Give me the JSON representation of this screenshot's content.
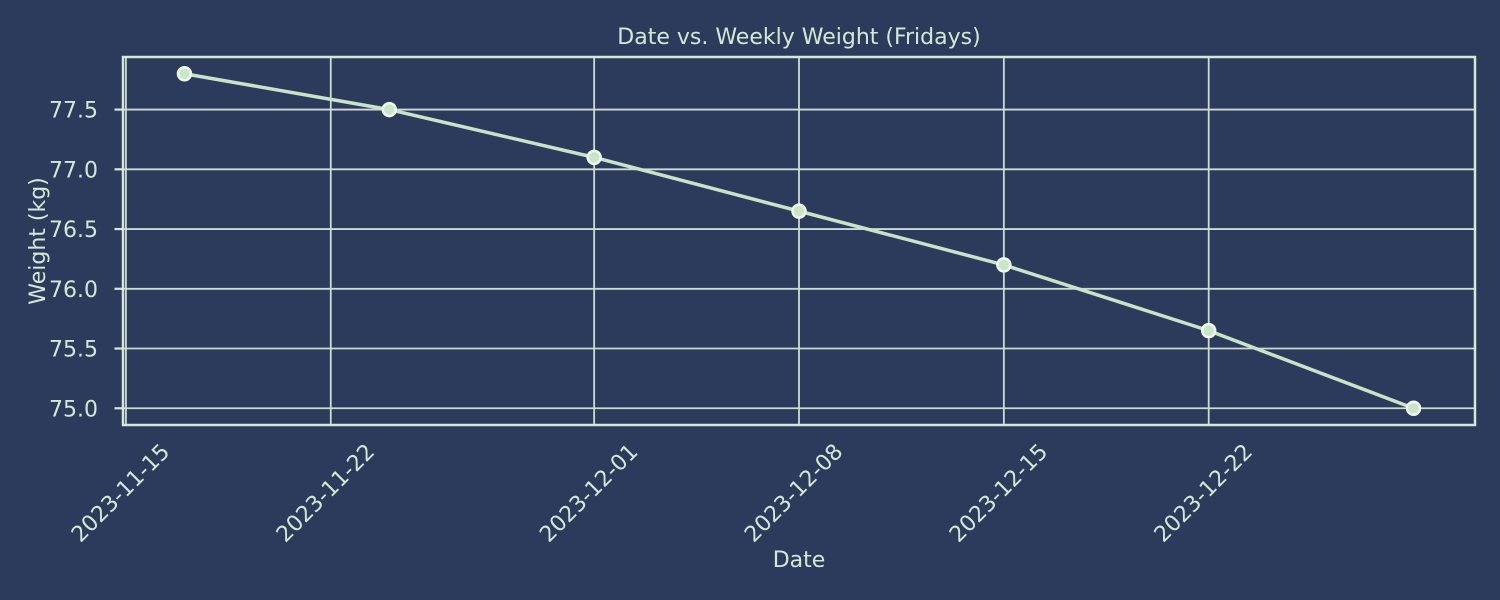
{
  "chart_data": {
    "type": "line",
    "title": "Date vs. Weekly Weight (Fridays)",
    "xlabel": "Date",
    "ylabel": "Weight (kg)",
    "x": [
      "2023-11-17",
      "2023-11-24",
      "2023-12-01",
      "2023-12-08",
      "2023-12-15",
      "2023-12-22",
      "2023-12-29"
    ],
    "y": [
      77.8,
      77.5,
      77.1,
      76.65,
      76.2,
      75.65,
      75.0
    ],
    "x_tick_labels": [
      "2023-11-15",
      "2023-11-22",
      "2023-12-01",
      "2023-12-08",
      "2023-12-15",
      "2023-12-22"
    ],
    "y_ticks": [
      "77.5",
      "77.0",
      "76.5",
      "76.0",
      "75.5",
      "75.0"
    ],
    "x_tick_rotation_deg": 45,
    "grid": true,
    "legend": "none",
    "margin_frac": 0.05,
    "ylim": [
      74.86,
      77.94
    ],
    "colors": {
      "background": "#2c3a5c",
      "text": "#d5e8d6",
      "spine": "#d5e8d6",
      "grid": "#cbdcd2",
      "line": "#c8e4c8",
      "marker_face": "#c9e6c9",
      "marker_edge": "#eff8ef"
    }
  }
}
